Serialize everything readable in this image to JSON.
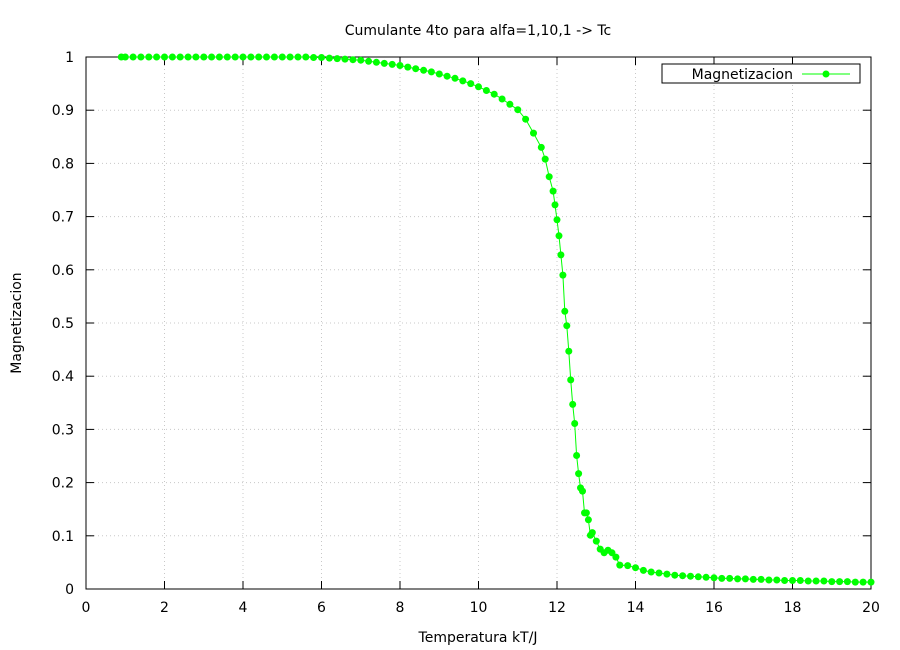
{
  "chart_data": {
    "type": "line",
    "title": "Cumulante 4to para alfa=1,10,1 -> Tc",
    "xlabel": "Temperatura kT/J",
    "ylabel": "Magnetizacion",
    "xlim": [
      0,
      20
    ],
    "ylim": [
      0,
      1
    ],
    "xticks": [
      "0",
      "2",
      "4",
      "6",
      "8",
      "10",
      "12",
      "14",
      "16",
      "18",
      "20"
    ],
    "yticks": [
      "0",
      "0.1",
      "0.2",
      "0.3",
      "0.4",
      "0.5",
      "0.6",
      "0.7",
      "0.8",
      "0.9",
      "1"
    ],
    "grid": true,
    "legend_position": "top-right",
    "series": [
      {
        "name": "Magnetizacion",
        "color": "#00ff00",
        "marker": "circle",
        "points": [
          [
            0.9,
            1.0
          ],
          [
            1.0,
            1.0
          ],
          [
            1.2,
            1.0
          ],
          [
            1.4,
            1.0
          ],
          [
            1.6,
            1.0
          ],
          [
            1.8,
            1.0
          ],
          [
            2.0,
            1.0
          ],
          [
            2.2,
            1.0
          ],
          [
            2.4,
            1.0
          ],
          [
            2.6,
            1.0
          ],
          [
            2.8,
            1.0
          ],
          [
            3.0,
            1.0
          ],
          [
            3.2,
            1.0
          ],
          [
            3.4,
            1.0
          ],
          [
            3.6,
            1.0
          ],
          [
            3.8,
            1.0
          ],
          [
            4.0,
            1.0
          ],
          [
            4.2,
            1.0
          ],
          [
            4.4,
            1.0
          ],
          [
            4.6,
            1.0
          ],
          [
            4.8,
            1.0
          ],
          [
            5.0,
            1.0
          ],
          [
            5.2,
            1.0
          ],
          [
            5.4,
            1.0
          ],
          [
            5.6,
            1.0
          ],
          [
            5.8,
            0.999
          ],
          [
            6.0,
            0.999
          ],
          [
            6.2,
            0.998
          ],
          [
            6.4,
            0.997
          ],
          [
            6.6,
            0.996
          ],
          [
            6.8,
            0.995
          ],
          [
            7.0,
            0.994
          ],
          [
            7.2,
            0.992
          ],
          [
            7.4,
            0.99
          ],
          [
            7.6,
            0.988
          ],
          [
            7.8,
            0.986
          ],
          [
            8.0,
            0.984
          ],
          [
            8.2,
            0.981
          ],
          [
            8.4,
            0.978
          ],
          [
            8.6,
            0.975
          ],
          [
            8.8,
            0.972
          ],
          [
            9.0,
            0.968
          ],
          [
            9.2,
            0.964
          ],
          [
            9.4,
            0.96
          ],
          [
            9.6,
            0.955
          ],
          [
            9.8,
            0.95
          ],
          [
            10.0,
            0.944
          ],
          [
            10.2,
            0.937
          ],
          [
            10.4,
            0.93
          ],
          [
            10.6,
            0.921
          ],
          [
            10.8,
            0.911
          ],
          [
            11.0,
            0.901
          ],
          [
            11.2,
            0.883
          ],
          [
            11.4,
            0.857
          ],
          [
            11.6,
            0.83
          ],
          [
            11.7,
            0.808
          ],
          [
            11.8,
            0.775
          ],
          [
            11.9,
            0.748
          ],
          [
            11.95,
            0.722
          ],
          [
            12.0,
            0.694
          ],
          [
            12.05,
            0.664
          ],
          [
            12.1,
            0.628
          ],
          [
            12.15,
            0.59
          ],
          [
            12.2,
            0.522
          ],
          [
            12.25,
            0.495
          ],
          [
            12.3,
            0.447
          ],
          [
            12.35,
            0.393
          ],
          [
            12.4,
            0.347
          ],
          [
            12.45,
            0.311
          ],
          [
            12.5,
            0.251
          ],
          [
            12.55,
            0.217
          ],
          [
            12.6,
            0.19
          ],
          [
            12.65,
            0.184
          ],
          [
            12.7,
            0.143
          ],
          [
            12.75,
            0.143
          ],
          [
            12.8,
            0.13
          ],
          [
            12.85,
            0.101
          ],
          [
            12.9,
            0.106
          ],
          [
            13.0,
            0.09
          ],
          [
            13.1,
            0.075
          ],
          [
            13.2,
            0.068
          ],
          [
            13.3,
            0.073
          ],
          [
            13.4,
            0.068
          ],
          [
            13.5,
            0.06
          ],
          [
            13.6,
            0.045
          ],
          [
            13.8,
            0.044
          ],
          [
            14.0,
            0.04
          ],
          [
            14.2,
            0.035
          ],
          [
            14.4,
            0.032
          ],
          [
            14.6,
            0.03
          ],
          [
            14.8,
            0.028
          ],
          [
            15.0,
            0.026
          ],
          [
            15.2,
            0.025
          ],
          [
            15.4,
            0.024
          ],
          [
            15.6,
            0.023
          ],
          [
            15.8,
            0.022
          ],
          [
            16.0,
            0.021
          ],
          [
            16.2,
            0.02
          ],
          [
            16.4,
            0.02
          ],
          [
            16.6,
            0.019
          ],
          [
            16.8,
            0.019
          ],
          [
            17.0,
            0.018
          ],
          [
            17.2,
            0.018
          ],
          [
            17.4,
            0.017
          ],
          [
            17.6,
            0.017
          ],
          [
            17.8,
            0.016
          ],
          [
            18.0,
            0.016
          ],
          [
            18.2,
            0.016
          ],
          [
            18.4,
            0.015
          ],
          [
            18.6,
            0.015
          ],
          [
            18.8,
            0.015
          ],
          [
            19.0,
            0.014
          ],
          [
            19.2,
            0.014
          ],
          [
            19.4,
            0.014
          ],
          [
            19.6,
            0.013
          ],
          [
            19.8,
            0.013
          ],
          [
            20.0,
            0.013
          ]
        ]
      }
    ]
  }
}
